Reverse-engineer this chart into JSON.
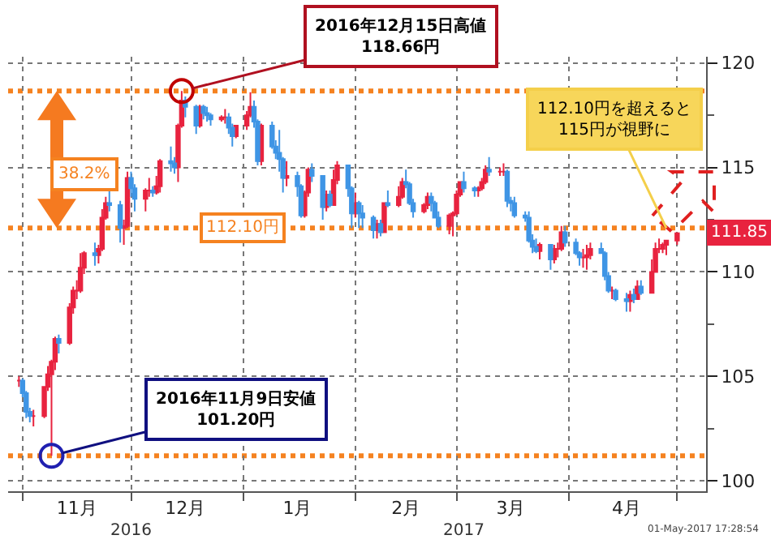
{
  "chart_data": {
    "type": "candlestick",
    "x": [
      "2016-10-31",
      "2016-11-01",
      "2016-11-02",
      "2016-11-03",
      "2016-11-04",
      "2016-11-07",
      "2016-11-08",
      "2016-11-09",
      "2016-11-10",
      "2016-11-11",
      "2016-11-14",
      "2016-11-15",
      "2016-11-16",
      "2016-11-17",
      "2016-11-18",
      "2016-11-21",
      "2016-11-22",
      "2016-11-23",
      "2016-11-24",
      "2016-11-25",
      "2016-11-28",
      "2016-11-29",
      "2016-11-30",
      "2016-12-01",
      "2016-12-02",
      "2016-12-05",
      "2016-12-06",
      "2016-12-07",
      "2016-12-08",
      "2016-12-09",
      "2016-12-12",
      "2016-12-13",
      "2016-12-14",
      "2016-12-15",
      "2016-12-16",
      "2016-12-19",
      "2016-12-20",
      "2016-12-21",
      "2016-12-22",
      "2016-12-23",
      "2016-12-26",
      "2016-12-27",
      "2016-12-28",
      "2016-12-29",
      "2016-12-30",
      "2017-01-02",
      "2017-01-03",
      "2017-01-04",
      "2017-01-05",
      "2017-01-06",
      "2017-01-09",
      "2017-01-10",
      "2017-01-11",
      "2017-01-12",
      "2017-01-13",
      "2017-01-16",
      "2017-01-17",
      "2017-01-18",
      "2017-01-19",
      "2017-01-20",
      "2017-01-23",
      "2017-01-24",
      "2017-01-25",
      "2017-01-26",
      "2017-01-27",
      "2017-01-30",
      "2017-01-31",
      "2017-02-01",
      "2017-02-02",
      "2017-02-03",
      "2017-02-06",
      "2017-02-07",
      "2017-02-08",
      "2017-02-09",
      "2017-02-10",
      "2017-02-13",
      "2017-02-14",
      "2017-02-15",
      "2017-02-16",
      "2017-02-17",
      "2017-02-20",
      "2017-02-21",
      "2017-02-22",
      "2017-02-23",
      "2017-02-24",
      "2017-02-27",
      "2017-02-28",
      "2017-03-01",
      "2017-03-02",
      "2017-03-03",
      "2017-03-06",
      "2017-03-07",
      "2017-03-08",
      "2017-03-09",
      "2017-03-10",
      "2017-03-13",
      "2017-03-14",
      "2017-03-15",
      "2017-03-16",
      "2017-03-17",
      "2017-03-20",
      "2017-03-21",
      "2017-03-22",
      "2017-03-23",
      "2017-03-24",
      "2017-03-27",
      "2017-03-28",
      "2017-03-29",
      "2017-03-30",
      "2017-03-31",
      "2017-04-03",
      "2017-04-04",
      "2017-04-05",
      "2017-04-06",
      "2017-04-07",
      "2017-04-10",
      "2017-04-11",
      "2017-04-12",
      "2017-04-13",
      "2017-04-14",
      "2017-04-17",
      "2017-04-18",
      "2017-04-19",
      "2017-04-20",
      "2017-04-21",
      "2017-04-24",
      "2017-04-25",
      "2017-04-26",
      "2017-04-27",
      "2017-04-28",
      "2017-05-01"
    ],
    "ohlc": [
      [
        104.8,
        105.0,
        104.5,
        104.8
      ],
      [
        104.8,
        104.9,
        104.0,
        104.2
      ],
      [
        104.2,
        104.3,
        103.0,
        103.3
      ],
      [
        103.3,
        103.5,
        102.8,
        103.1
      ],
      [
        103.1,
        103.4,
        102.6,
        103.1
      ],
      [
        103.1,
        104.5,
        103.0,
        104.5
      ],
      [
        104.5,
        105.5,
        104.3,
        105.1
      ],
      [
        105.1,
        105.8,
        101.2,
        105.7
      ],
      [
        105.7,
        106.9,
        105.3,
        106.8
      ],
      [
        106.8,
        107.0,
        106.1,
        106.6
      ],
      [
        106.6,
        108.5,
        106.5,
        108.3
      ],
      [
        108.3,
        109.3,
        108.0,
        109.1
      ],
      [
        109.1,
        109.6,
        108.7,
        109.1
      ],
      [
        109.1,
        110.9,
        109.0,
        110.2
      ],
      [
        110.2,
        111.0,
        109.9,
        110.9
      ],
      [
        110.9,
        111.4,
        110.3,
        110.8
      ],
      [
        110.8,
        111.3,
        110.4,
        111.1
      ],
      [
        111.1,
        113.0,
        111.0,
        112.6
      ],
      [
        112.6,
        113.6,
        112.5,
        113.3
      ],
      [
        113.3,
        113.9,
        112.9,
        113.2
      ],
      [
        113.2,
        113.4,
        111.4,
        112.1
      ],
      [
        112.1,
        112.5,
        111.3,
        112.2
      ],
      [
        112.2,
        114.8,
        112.1,
        114.5
      ],
      [
        114.5,
        114.8,
        113.6,
        114.0
      ],
      [
        114.0,
        114.2,
        112.9,
        113.5
      ],
      [
        113.5,
        114.0,
        112.9,
        113.9
      ],
      [
        113.9,
        114.5,
        113.6,
        113.9
      ],
      [
        113.9,
        114.1,
        113.6,
        113.8
      ],
      [
        113.8,
        114.6,
        113.7,
        114.1
      ],
      [
        114.1,
        115.4,
        113.8,
        115.3
      ],
      [
        115.3,
        116.0,
        114.8,
        115.2
      ],
      [
        115.2,
        115.5,
        114.7,
        115.0
      ],
      [
        115.0,
        117.1,
        114.3,
        117.0
      ],
      [
        117.0,
        118.66,
        116.9,
        118.2
      ],
      [
        118.2,
        118.4,
        117.4,
        117.9
      ],
      [
        117.9,
        118.0,
        116.6,
        117.0
      ],
      [
        117.0,
        118.0,
        116.9,
        117.9
      ],
      [
        117.9,
        118.0,
        117.3,
        117.6
      ],
      [
        117.6,
        117.9,
        117.2,
        117.5
      ],
      [
        117.5,
        117.6,
        117.0,
        117.3
      ],
      [
        117.3,
        117.5,
        117.2,
        117.4
      ],
      [
        117.4,
        117.8,
        117.1,
        117.4
      ],
      [
        117.4,
        117.6,
        116.6,
        116.9
      ],
      [
        116.9,
        117.1,
        116.0,
        116.5
      ],
      [
        116.5,
        117.0,
        116.4,
        117.0
      ],
      [
        117.0,
        117.7,
        116.8,
        117.5
      ],
      [
        117.5,
        118.6,
        117.4,
        117.9
      ],
      [
        117.9,
        118.2,
        116.9,
        117.2
      ],
      [
        117.2,
        117.3,
        115.1,
        115.3
      ],
      [
        115.3,
        117.1,
        115.1,
        117.0
      ],
      [
        117.0,
        117.2,
        115.9,
        116.0
      ],
      [
        116.0,
        116.3,
        115.4,
        115.7
      ],
      [
        115.7,
        116.8,
        114.8,
        115.4
      ],
      [
        115.4,
        115.5,
        113.8,
        114.5
      ],
      [
        114.5,
        115.3,
        114.1,
        114.6
      ],
      [
        114.6,
        114.8,
        113.6,
        114.1
      ],
      [
        114.1,
        114.2,
        112.6,
        112.7
      ],
      [
        112.7,
        113.9,
        112.6,
        113.8
      ],
      [
        113.8,
        115.0,
        113.6,
        114.9
      ],
      [
        114.9,
        115.2,
        114.3,
        114.6
      ],
      [
        114.6,
        114.6,
        112.5,
        113.1
      ],
      [
        113.1,
        113.9,
        112.9,
        113.7
      ],
      [
        113.7,
        113.9,
        113.1,
        113.2
      ],
      [
        113.2,
        114.9,
        113.2,
        114.4
      ],
      [
        114.4,
        115.3,
        114.2,
        115.1
      ],
      [
        115.1,
        115.1,
        113.6,
        114.0
      ],
      [
        114.0,
        114.1,
        112.1,
        112.8
      ],
      [
        112.8,
        113.8,
        112.6,
        113.3
      ],
      [
        113.3,
        113.4,
        112.1,
        112.8
      ],
      [
        112.8,
        113.2,
        112.1,
        112.6
      ],
      [
        112.6,
        112.7,
        111.6,
        112.0
      ],
      [
        112.0,
        112.5,
        111.6,
        112.3
      ],
      [
        112.3,
        112.5,
        111.7,
        111.9
      ],
      [
        111.9,
        113.3,
        111.9,
        113.3
      ],
      [
        113.3,
        113.9,
        113.1,
        113.2
      ],
      [
        113.2,
        114.1,
        113.1,
        113.6
      ],
      [
        113.6,
        114.5,
        113.5,
        114.3
      ],
      [
        114.3,
        114.9,
        114.0,
        114.2
      ],
      [
        114.2,
        114.3,
        113.2,
        113.3
      ],
      [
        113.3,
        113.5,
        112.6,
        112.9
      ],
      [
        112.9,
        113.3,
        112.8,
        113.2
      ],
      [
        113.2,
        113.8,
        113.0,
        113.6
      ],
      [
        113.6,
        113.8,
        112.9,
        113.3
      ],
      [
        113.3,
        113.4,
        112.6,
        112.6
      ],
      [
        112.6,
        112.9,
        112.1,
        112.2
      ],
      [
        112.2,
        112.8,
        111.8,
        112.7
      ],
      [
        112.7,
        112.9,
        111.7,
        112.8
      ],
      [
        112.8,
        113.9,
        112.7,
        113.7
      ],
      [
        113.7,
        114.3,
        113.6,
        114.3
      ],
      [
        114.3,
        114.8,
        113.8,
        114.0
      ],
      [
        114.0,
        114.1,
        113.6,
        113.9
      ],
      [
        113.9,
        114.1,
        113.6,
        114.0
      ],
      [
        114.0,
        114.5,
        113.9,
        114.3
      ],
      [
        114.3,
        115.1,
        114.2,
        114.9
      ],
      [
        114.9,
        115.5,
        114.6,
        114.8
      ],
      [
        114.8,
        115.0,
        114.6,
        114.8
      ],
      [
        114.8,
        115.2,
        114.6,
        114.8
      ],
      [
        114.8,
        114.9,
        113.1,
        113.4
      ],
      [
        113.4,
        113.6,
        112.9,
        113.3
      ],
      [
        113.3,
        113.6,
        112.6,
        112.7
      ],
      [
        112.7,
        112.9,
        112.4,
        112.6
      ],
      [
        112.6,
        112.9,
        111.4,
        111.5
      ],
      [
        111.5,
        111.8,
        110.9,
        111.2
      ],
      [
        111.2,
        111.6,
        110.9,
        111.0
      ],
      [
        111.0,
        111.4,
        110.6,
        111.3
      ],
      [
        111.3,
        111.3,
        110.1,
        110.6
      ],
      [
        110.6,
        111.3,
        110.4,
        111.1
      ],
      [
        111.1,
        111.4,
        110.7,
        111.1
      ],
      [
        111.1,
        112.2,
        111.0,
        111.9
      ],
      [
        111.9,
        112.2,
        111.2,
        111.4
      ],
      [
        111.4,
        111.6,
        110.8,
        110.9
      ],
      [
        110.9,
        111.0,
        110.3,
        110.7
      ],
      [
        110.7,
        111.1,
        110.2,
        110.7
      ],
      [
        110.7,
        111.3,
        110.1,
        110.8
      ],
      [
        110.8,
        111.4,
        110.6,
        111.1
      ],
      [
        111.1,
        111.4,
        110.9,
        110.9
      ],
      [
        110.9,
        111.0,
        109.6,
        109.8
      ],
      [
        109.8,
        110.0,
        109.0,
        109.1
      ],
      [
        109.1,
        109.3,
        108.7,
        109.1
      ],
      [
        109.1,
        109.2,
        108.6,
        108.7
      ],
      [
        108.7,
        109.0,
        108.1,
        108.6
      ],
      [
        108.6,
        109.1,
        108.1,
        108.9
      ],
      [
        108.9,
        109.2,
        108.5,
        108.7
      ],
      [
        108.7,
        109.6,
        108.7,
        109.3
      ],
      [
        109.3,
        109.6,
        108.9,
        109.0
      ],
      [
        109.0,
        110.6,
        109.0,
        110.0
      ],
      [
        110.0,
        111.4,
        110.0,
        111.1
      ],
      [
        111.1,
        111.6,
        110.9,
        111.1
      ],
      [
        111.1,
        111.4,
        110.9,
        111.3
      ],
      [
        111.3,
        111.5,
        110.8,
        111.5
      ],
      [
        111.5,
        111.9,
        111.3,
        111.85
      ]
    ],
    "colors": [
      "#e8233f",
      "#3f95e5",
      "#3f95e5",
      "#3f95e5",
      "#e8233f",
      "#e8233f",
      "#e8233f",
      "#e8233f",
      "#e8233f",
      "#3f95e5",
      "#e8233f",
      "#e8233f",
      "#e8233f",
      "#e8233f",
      "#e8233f",
      "#3f95e5",
      "#e8233f",
      "#e8233f",
      "#e8233f",
      "#3f95e5",
      "#3f95e5",
      "#e8233f",
      "#e8233f",
      "#3f95e5",
      "#3f95e5",
      "#e8233f",
      "#e8233f",
      "#3f95e5",
      "#e8233f",
      "#e8233f",
      "#3f95e5",
      "#3f95e5",
      "#e8233f",
      "#e8233f",
      "#3f95e5",
      "#3f95e5",
      "#e8233f",
      "#3f95e5",
      "#3f95e5",
      "#3f95e5",
      "#e8233f",
      "#e8233f",
      "#3f95e5",
      "#3f95e5",
      "#e8233f",
      "#e8233f",
      "#e8233f",
      "#3f95e5",
      "#3f95e5",
      "#e8233f",
      "#3f95e5",
      "#3f95e5",
      "#3f95e5",
      "#3f95e5",
      "#e8233f",
      "#3f95e5",
      "#3f95e5",
      "#e8233f",
      "#e8233f",
      "#3f95e5",
      "#3f95e5",
      "#e8233f",
      "#3f95e5",
      "#e8233f",
      "#e8233f",
      "#3f95e5",
      "#3f95e5",
      "#e8233f",
      "#3f95e5",
      "#3f95e5",
      "#3f95e5",
      "#e8233f",
      "#3f95e5",
      "#e8233f",
      "#3f95e5",
      "#e8233f",
      "#e8233f",
      "#3f95e5",
      "#3f95e5",
      "#3f95e5",
      "#e8233f",
      "#e8233f",
      "#3f95e5",
      "#3f95e5",
      "#3f95e5",
      "#e8233f",
      "#e8233f",
      "#e8233f",
      "#e8233f",
      "#3f95e5",
      "#3f95e5",
      "#e8233f",
      "#e8233f",
      "#e8233f",
      "#3f95e5",
      "#e8233f",
      "#e8233f",
      "#3f95e5",
      "#3f95e5",
      "#3f95e5",
      "#3f95e5",
      "#3f95e5",
      "#3f95e5",
      "#3f95e5",
      "#e8233f",
      "#3f95e5",
      "#e8233f",
      "#e8233f",
      "#e8233f",
      "#3f95e5",
      "#3f95e5",
      "#3f95e5",
      "#e8233f",
      "#e8233f",
      "#e8233f",
      "#3f95e5",
      "#3f95e5",
      "#3f95e5",
      "#e8233f",
      "#3f95e5",
      "#3f95e5",
      "#e8233f",
      "#3f95e5",
      "#e8233f",
      "#3f95e5",
      "#e8233f",
      "#e8233f",
      "#e8233f",
      "#e8233f",
      "#e8233f",
      "#e8233f"
    ],
    "x2lim": [
      "2016-10-28",
      "2017-05-09"
    ],
    "x2ticks": [
      {
        "value": "2016-12-01",
        "label": "2016"
      },
      {
        "value": "2017-03-03",
        "label": "2017"
      }
    ],
    "xlim": [
      "2016-10-28",
      "2017-05-09"
    ],
    "ylim": [
      99.5,
      120.3
    ],
    "yticks": [
      100,
      {
        "value": 102.5,
        "label": null
      },
      105,
      {
        "value": 107.5,
        "label": null
      },
      110,
      {
        "value": 112.5,
        "label": null
      },
      115,
      {
        "value": 117.5,
        "label": null
      },
      120
    ],
    "xticks": [
      {
        "value": "2016-11-01",
        "label": null
      },
      {
        "value": "2016-11-16",
        "label": "11月"
      },
      {
        "value": "2016-12-01",
        "label": null
      },
      {
        "value": "2016-12-16",
        "label": "12月"
      },
      {
        "value": "2017-01-01",
        "label": null
      },
      {
        "value": "2017-01-16",
        "label": "1月"
      },
      {
        "value": "2017-02-01",
        "label": null
      },
      {
        "value": "2017-02-15",
        "label": "2月"
      },
      {
        "value": "2017-03-01",
        "label": null
      },
      {
        "value": "2017-03-16",
        "label": "3月"
      },
      {
        "value": "2017-04-01",
        "label": null
      },
      {
        "value": "2017-04-17",
        "label": "4月"
      },
      {
        "value": "2017-05-01",
        "label": null
      }
    ],
    "grid": true,
    "ref_lines": [
      {
        "axis": "y",
        "value": 118.66,
        "color": "#f58220",
        "line_style": "dotted"
      },
      {
        "axis": "y",
        "value": 112.1,
        "label": "112.10円",
        "color": "#f58220",
        "line_style": "dotted"
      },
      {
        "axis": "y",
        "value": 101.2,
        "color": "#f58220",
        "line_style": "dotted"
      }
    ],
    "annotations": [
      {
        "text": "2016年12月15日高値\n118.66円",
        "x": "2016-12-15",
        "y": 118.66
      },
      {
        "text": "2016年11月9日安値\n101.20円",
        "x": "2016-11-09",
        "y": 101.2
      },
      {
        "text": "112.10円を超えると\n115円が視野に",
        "x": "2017-04-28",
        "y": 112.1
      },
      {
        "text": "111.85",
        "y": 111.85
      },
      "38.2%",
      "01-May-2017 17:28:54"
    ]
  }
}
